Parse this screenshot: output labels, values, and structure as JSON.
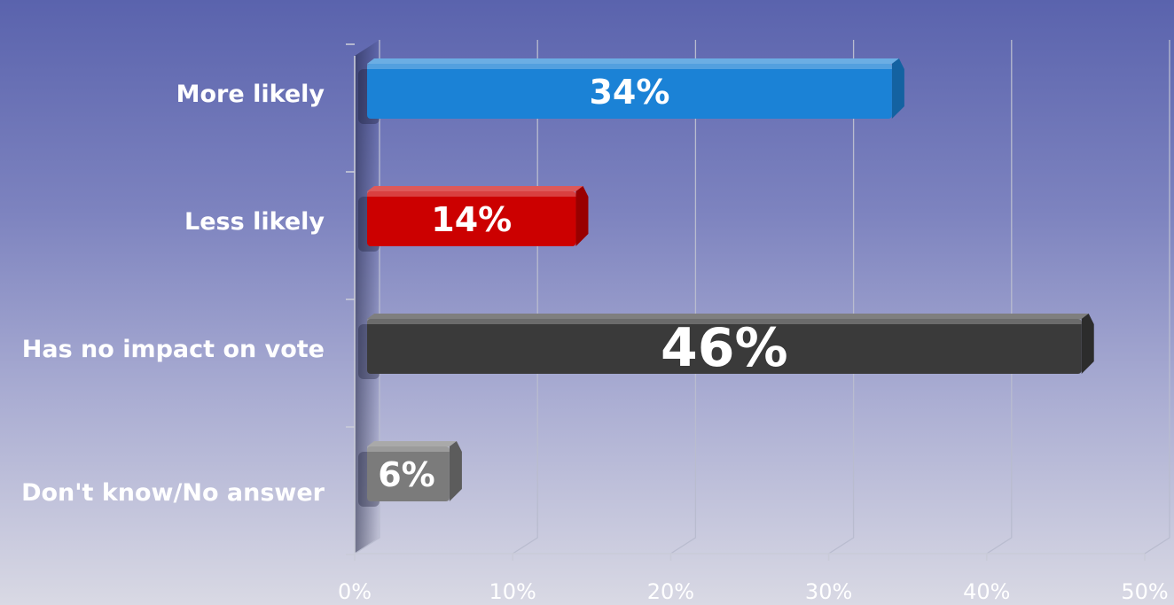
{
  "chart_data": {
    "type": "bar",
    "orientation": "horizontal",
    "style": "3d",
    "title": "",
    "xlabel": "",
    "ylabel": "",
    "categories": [
      "More likely",
      "Less likely",
      "Has no impact on vote",
      "Don't know/No answer"
    ],
    "values": [
      34,
      14,
      46,
      6
    ],
    "value_labels": [
      "34%",
      "14%",
      "46%",
      "6%"
    ],
    "bar_colors": [
      "#1b82d6",
      "#cc0000",
      "#3a3a3a",
      "#7b7b7b"
    ],
    "xlim": [
      0,
      50
    ],
    "x_ticks": [
      0,
      10,
      20,
      30,
      40,
      50
    ],
    "x_tick_labels": [
      "0%",
      "10%",
      "20%",
      "30%",
      "40%",
      "50%"
    ],
    "grid": true,
    "legend": "none"
  }
}
